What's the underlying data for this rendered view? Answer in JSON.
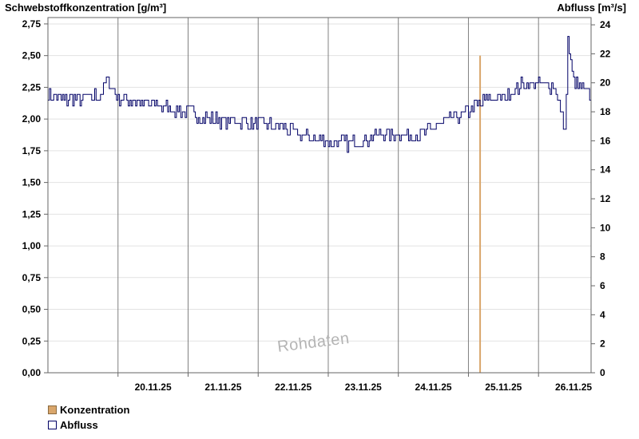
{
  "chart_data": {
    "type": "line",
    "left_axis_title": "Schwebstoffkonzentration [g/m³]",
    "right_axis_title": "Abfluss [m³/s]",
    "y_left": {
      "min": 0,
      "max": 2.8,
      "ticks": [
        "0,00",
        "0,25",
        "0,50",
        "0,75",
        "1,00",
        "1,25",
        "1,50",
        "1,75",
        "2,00",
        "2,25",
        "2,50",
        "2,75"
      ]
    },
    "y_right": {
      "min": 0,
      "max": 24.5,
      "ticks": [
        "0",
        "2",
        "4",
        "6",
        "8",
        "10",
        "12",
        "14",
        "16",
        "18",
        "20",
        "22",
        "24"
      ]
    },
    "x_range_days": [
      "19.11.25",
      "26.11.25 18:00"
    ],
    "date_labels": [
      "20.11.25",
      "21.11.25",
      "22.11.25",
      "23.11.25",
      "24.11.25",
      "25.11.25",
      "26.11.25"
    ],
    "grid": true,
    "series": [
      {
        "name": "Konzentration",
        "color": "#d9a66b",
        "axis": "left",
        "points": [
          [
            "25.11.25 04:00",
            2.5
          ]
        ]
      },
      {
        "name": "Abfluss",
        "color": "#000066",
        "axis": "right",
        "points": [
          [
            "19.11.25 00:00",
            19.2
          ],
          [
            "19.11.25 06:00",
            18.8
          ],
          [
            "19.11.25 12:00",
            18.9
          ],
          [
            "19.11.25 18:00",
            19.2
          ],
          [
            "19.11.25 20:00",
            20.1
          ],
          [
            "20.11.25 00:00",
            19.0
          ],
          [
            "20.11.25 06:00",
            18.7
          ],
          [
            "20.11.25 12:00",
            18.5
          ],
          [
            "20.11.25 18:00",
            18.2
          ],
          [
            "21.11.25 00:00",
            18.0
          ],
          [
            "21.11.25 06:00",
            17.6
          ],
          [
            "21.11.25 12:00",
            17.4
          ],
          [
            "21.11.25 18:00",
            17.3
          ],
          [
            "22.11.25 00:00",
            17.2
          ],
          [
            "22.11.25 06:00",
            17.0
          ],
          [
            "22.11.25 12:00",
            16.6
          ],
          [
            "22.11.25 18:00",
            16.2
          ],
          [
            "23.11.25 00:00",
            16.0
          ],
          [
            "23.11.25 06:00",
            15.8
          ],
          [
            "23.11.25 12:00",
            16.0
          ],
          [
            "23.11.25 18:00",
            16.5
          ],
          [
            "24.11.25 00:00",
            16.5
          ],
          [
            "24.11.25 06:00",
            16.3
          ],
          [
            "24.11.25 12:00",
            16.9
          ],
          [
            "24.11.25 18:00",
            17.6
          ],
          [
            "25.11.25 00:00",
            18.0
          ],
          [
            "25.11.25 06:00",
            18.8
          ],
          [
            "25.11.25 12:00",
            19.0
          ],
          [
            "25.11.25 18:00",
            19.8
          ],
          [
            "26.11.25 00:00",
            20.0
          ],
          [
            "26.11.25 06:00",
            19.6
          ],
          [
            "26.11.25 09:00",
            16.5
          ],
          [
            "26.11.25 10:00",
            23.0
          ],
          [
            "26.11.25 12:00",
            20.0
          ],
          [
            "26.11.25 15:00",
            19.5
          ],
          [
            "26.11.25 18:00",
            19.2
          ]
        ]
      }
    ]
  },
  "legend": {
    "konzentration_label": "Konzentration",
    "abfluss_label": "Abfluss",
    "konzentration_color": "#d9a66b",
    "abfluss_color": "#000066"
  },
  "watermark_text": "Rohdaten"
}
